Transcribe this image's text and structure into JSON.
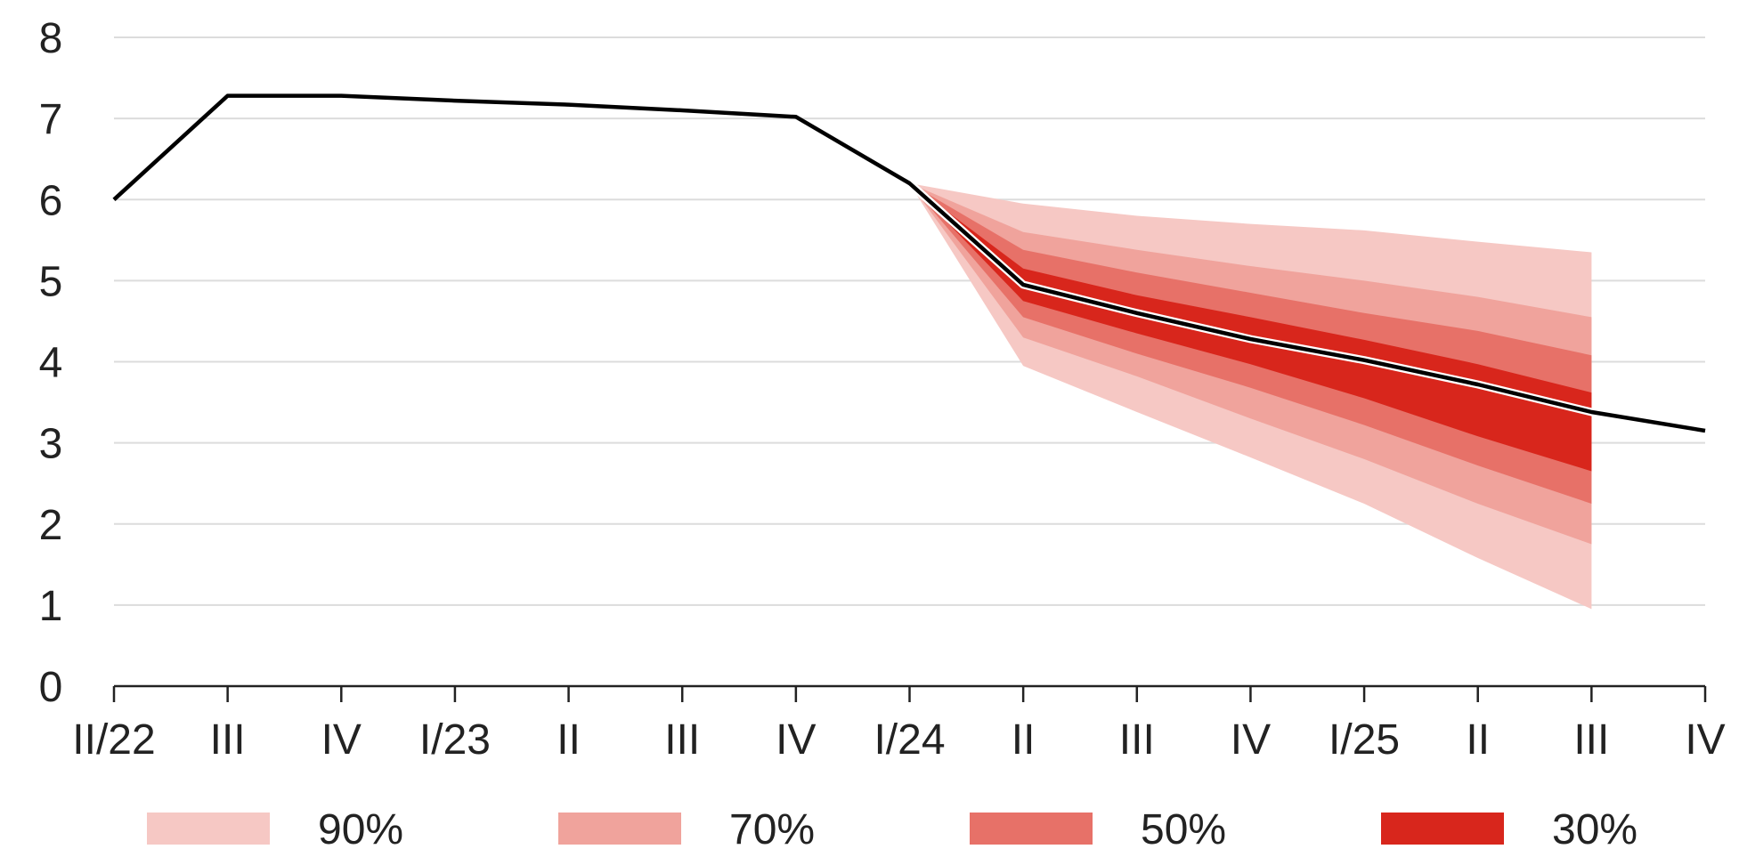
{
  "chart_data": {
    "type": "area",
    "title": "",
    "xlabel": "",
    "ylabel": "",
    "ylim": [
      0,
      8
    ],
    "yticks": [
      "0",
      "1",
      "2",
      "3",
      "4",
      "5",
      "6",
      "7",
      "8"
    ],
    "grid": true,
    "legend_placement": "bottom",
    "categories": [
      "II/22",
      "III",
      "IV",
      "I/23",
      "II",
      "III",
      "IV",
      "I/24",
      "II",
      "III",
      "IV",
      "I/25",
      "II",
      "III",
      "IV"
    ],
    "central_line": {
      "color": "#000000",
      "values": [
        6.0,
        7.28,
        7.28,
        7.22,
        7.17,
        7.1,
        7.02,
        6.2,
        4.95,
        4.6,
        4.28,
        4.02,
        3.72,
        3.38,
        3.15
      ]
    },
    "fan_start_index": 7,
    "bands": [
      {
        "name": "90%",
        "color": "#f6c8c4",
        "upper": [
          6.2,
          5.95,
          5.8,
          5.7,
          5.62,
          5.48,
          5.35
        ],
        "lower": [
          6.2,
          3.95,
          3.38,
          2.82,
          2.25,
          1.58,
          0.95
        ]
      },
      {
        "name": "70%",
        "color": "#f0a39c",
        "upper": [
          6.2,
          5.6,
          5.38,
          5.18,
          5.0,
          4.8,
          4.55
        ],
        "lower": [
          6.2,
          4.3,
          3.82,
          3.3,
          2.8,
          2.25,
          1.75
        ]
      },
      {
        "name": "50%",
        "color": "#e77168",
        "upper": [
          6.2,
          5.38,
          5.1,
          4.85,
          4.6,
          4.38,
          4.08
        ],
        "lower": [
          6.2,
          4.55,
          4.1,
          3.68,
          3.22,
          2.72,
          2.25
        ]
      },
      {
        "name": "30%",
        "color": "#d8261c",
        "upper": [
          6.2,
          5.15,
          4.82,
          4.55,
          4.27,
          3.97,
          3.62
        ],
        "lower": [
          6.2,
          4.75,
          4.35,
          3.97,
          3.55,
          3.08,
          2.65
        ]
      }
    ],
    "gridline_color": "#dcdcdc",
    "axis_color": "#222222"
  }
}
